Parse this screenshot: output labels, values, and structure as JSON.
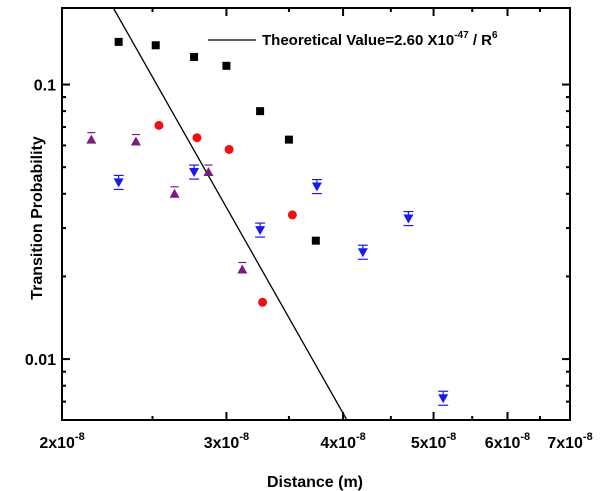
{
  "chart_data": {
    "type": "scatter",
    "xlabel": "Distance (m)",
    "ylabel": "Transition Probability",
    "x_scale": "log",
    "y_scale": "log",
    "xlim": [
      2e-08,
      7e-08
    ],
    "ylim": [
      0.006,
      0.19
    ],
    "x_ticks": [
      {
        "value": 2e-08,
        "mantissa": "2x10",
        "exponent": "-8"
      },
      {
        "value": 3e-08,
        "mantissa": "3x10",
        "exponent": "-8"
      },
      {
        "value": 4e-08,
        "mantissa": "4x10",
        "exponent": "-8"
      },
      {
        "value": 5e-08,
        "mantissa": "5x10",
        "exponent": "-8"
      },
      {
        "value": 6e-08,
        "mantissa": "6x10",
        "exponent": "-8"
      },
      {
        "value": 7e-08,
        "mantissa": "7x10",
        "exponent": "-8"
      }
    ],
    "y_ticks": [
      {
        "value": 0.01,
        "label": "0.01"
      },
      {
        "value": 0.1,
        "label": "0.1"
      }
    ],
    "legend": {
      "position": "top-right",
      "text_main": "Theoretical Value=2.60 X10",
      "text_exp": "-47",
      "text_mid": " / R",
      "text_pow": "6"
    },
    "theory_line": {
      "coefficient": 2.6e-47,
      "power": -6,
      "color": "#000000"
    },
    "series": [
      {
        "marker": "square",
        "color": "#000000",
        "points": [
          {
            "x": 2.3e-08,
            "y": 0.143
          },
          {
            "x": 2.52e-08,
            "y": 0.139
          },
          {
            "x": 2.77e-08,
            "y": 0.126
          },
          {
            "x": 3e-08,
            "y": 0.117
          },
          {
            "x": 3.26e-08,
            "y": 0.08
          },
          {
            "x": 3.5e-08,
            "y": 0.063
          },
          {
            "x": 3.74e-08,
            "y": 0.027
          }
        ]
      },
      {
        "marker": "circle",
        "color": "#ee1111",
        "points": [
          {
            "x": 2.54e-08,
            "y": 0.071
          },
          {
            "x": 2.79e-08,
            "y": 0.064
          },
          {
            "x": 3.02e-08,
            "y": 0.058
          },
          {
            "x": 3.53e-08,
            "y": 0.0335
          },
          {
            "x": 3.28e-08,
            "y": 0.0161
          }
        ]
      },
      {
        "marker": "triangle-up",
        "color": "#7a1c7e",
        "points": [
          {
            "x": 2.15e-08,
            "y": 0.063
          },
          {
            "x": 2.4e-08,
            "y": 0.062
          },
          {
            "x": 2.64e-08,
            "y": 0.04
          },
          {
            "x": 2.87e-08,
            "y": 0.048
          },
          {
            "x": 3.12e-08,
            "y": 0.0212
          }
        ]
      },
      {
        "marker": "triangle-down",
        "color": "#1a1aee",
        "points": [
          {
            "x": 2.3e-08,
            "y": 0.044
          },
          {
            "x": 2.77e-08,
            "y": 0.048
          },
          {
            "x": 3.26e-08,
            "y": 0.0295
          },
          {
            "x": 3.75e-08,
            "y": 0.0425
          },
          {
            "x": 4.2e-08,
            "y": 0.0245
          },
          {
            "x": 4.7e-08,
            "y": 0.0325
          },
          {
            "x": 5.12e-08,
            "y": 0.0072
          }
        ]
      }
    ]
  }
}
